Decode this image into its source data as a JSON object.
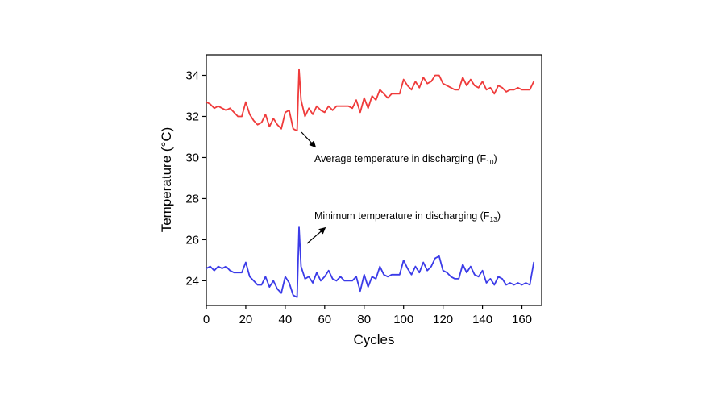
{
  "chart_data": {
    "type": "line",
    "xlabel": "Cycles",
    "ylabel": "Temperature (°C)",
    "xlim": [
      0,
      170
    ],
    "ylim": [
      22.8,
      35
    ],
    "xticks": [
      0,
      20,
      40,
      60,
      80,
      100,
      120,
      140,
      160
    ],
    "yticks": [
      24,
      26,
      28,
      30,
      32,
      34
    ],
    "grid": false,
    "series": [
      {
        "color": "#ef3b3b",
        "x": [
          0,
          2,
          4,
          6,
          8,
          10,
          12,
          14,
          16,
          18,
          20,
          22,
          24,
          26,
          28,
          30,
          32,
          34,
          36,
          38,
          40,
          42,
          44,
          46,
          47,
          48,
          50,
          52,
          54,
          56,
          58,
          60,
          62,
          64,
          66,
          68,
          70,
          72,
          74,
          76,
          78,
          80,
          82,
          84,
          86,
          88,
          90,
          92,
          94,
          96,
          98,
          100,
          102,
          104,
          106,
          108,
          110,
          112,
          114,
          116,
          118,
          120,
          122,
          124,
          126,
          128,
          130,
          132,
          134,
          136,
          138,
          140,
          142,
          144,
          146,
          148,
          150,
          152,
          154,
          156,
          158,
          160,
          162,
          164,
          166
        ],
        "y": [
          32.7,
          32.6,
          32.4,
          32.5,
          32.4,
          32.3,
          32.4,
          32.2,
          32.0,
          32.0,
          32.7,
          32.1,
          31.8,
          31.6,
          31.7,
          32.1,
          31.5,
          31.9,
          31.6,
          31.4,
          32.2,
          32.3,
          31.4,
          31.3,
          34.3,
          32.8,
          32.0,
          32.4,
          32.1,
          32.5,
          32.3,
          32.2,
          32.5,
          32.3,
          32.5,
          32.5,
          32.5,
          32.5,
          32.4,
          32.8,
          32.2,
          32.9,
          32.4,
          33.0,
          32.8,
          33.3,
          33.1,
          32.9,
          33.1,
          33.1,
          33.1,
          33.8,
          33.5,
          33.3,
          33.7,
          33.4,
          33.9,
          33.6,
          33.7,
          34.0,
          34.0,
          33.6,
          33.5,
          33.4,
          33.3,
          33.3,
          33.9,
          33.5,
          33.8,
          33.5,
          33.4,
          33.7,
          33.3,
          33.4,
          33.1,
          33.5,
          33.4,
          33.2,
          33.3,
          33.3,
          33.4,
          33.3,
          33.3,
          33.3,
          33.7
        ]
      },
      {
        "color": "#3b3be8",
        "x": [
          0,
          2,
          4,
          6,
          8,
          10,
          12,
          14,
          16,
          18,
          20,
          22,
          24,
          26,
          28,
          30,
          32,
          34,
          36,
          38,
          40,
          42,
          44,
          46,
          47,
          48,
          50,
          52,
          54,
          56,
          58,
          60,
          62,
          64,
          66,
          68,
          70,
          72,
          74,
          76,
          78,
          80,
          82,
          84,
          86,
          88,
          90,
          92,
          94,
          96,
          98,
          100,
          102,
          104,
          106,
          108,
          110,
          112,
          114,
          116,
          118,
          120,
          122,
          124,
          126,
          128,
          130,
          132,
          134,
          136,
          138,
          140,
          142,
          144,
          146,
          148,
          150,
          152,
          154,
          156,
          158,
          160,
          162,
          164,
          166
        ],
        "y": [
          24.6,
          24.7,
          24.5,
          24.7,
          24.6,
          24.7,
          24.5,
          24.4,
          24.4,
          24.4,
          24.9,
          24.2,
          24.0,
          23.8,
          23.8,
          24.2,
          23.7,
          24.0,
          23.6,
          23.4,
          24.2,
          23.9,
          23.3,
          23.2,
          26.6,
          24.7,
          24.1,
          24.2,
          23.9,
          24.4,
          24.0,
          24.2,
          24.5,
          24.1,
          24.0,
          24.2,
          24.0,
          24.0,
          24.0,
          24.2,
          23.5,
          24.3,
          23.7,
          24.2,
          24.1,
          24.7,
          24.3,
          24.2,
          24.3,
          24.3,
          24.3,
          25.0,
          24.6,
          24.3,
          24.7,
          24.4,
          24.9,
          24.5,
          24.7,
          25.1,
          25.2,
          24.5,
          24.4,
          24.2,
          24.1,
          24.1,
          24.8,
          24.4,
          24.7,
          24.3,
          24.2,
          24.5,
          23.9,
          24.1,
          23.8,
          24.2,
          24.1,
          23.8,
          23.9,
          23.8,
          23.9,
          23.8,
          23.9,
          23.8,
          24.9
        ]
      }
    ],
    "annotations": [
      {
        "text": "Average temperature in discharging (F",
        "sub": "10",
        "tail": ")"
      },
      {
        "text": "Minimum temperature in discharging (F",
        "sub": "13",
        "tail": ")"
      }
    ]
  }
}
